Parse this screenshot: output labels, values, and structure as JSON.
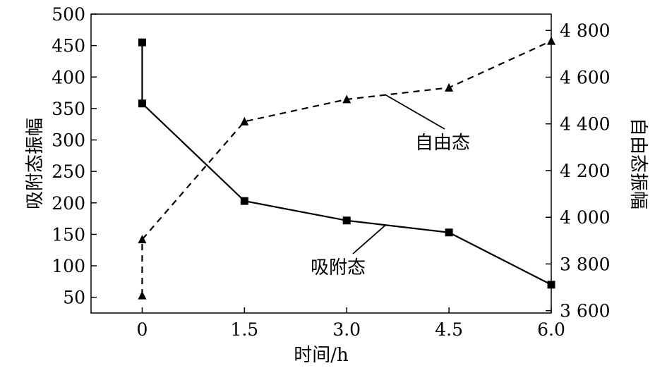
{
  "chart_data": {
    "type": "line",
    "xlabel": "时间/h",
    "ylabel_left": "吸附态振幅",
    "ylabel_right": "自由态振幅",
    "x_ticks": [
      "0",
      "1.5",
      "3.0",
      "4.5",
      "6.0"
    ],
    "xlim": [
      -0.75,
      6.0
    ],
    "ylim_left": [
      25,
      500
    ],
    "ylim_right": [
      3590,
      4870
    ],
    "y_ticks_left": [
      50,
      100,
      150,
      200,
      250,
      300,
      350,
      400,
      450,
      500
    ],
    "y_ticks_right": [
      3600,
      3800,
      4000,
      4200,
      4400,
      4600,
      4800
    ],
    "y_ticks_right_labels": [
      "3 600",
      "3 800",
      "4 000",
      "4 200",
      "4 400",
      "4 600",
      "4 800"
    ],
    "grid": false,
    "series": [
      {
        "name": "吸附态",
        "axis": "left",
        "marker": "square",
        "line_style": "solid",
        "color": "#000000",
        "points": [
          [
            0,
            455
          ],
          [
            0,
            358
          ],
          [
            1.5,
            203
          ],
          [
            3.0,
            172
          ],
          [
            4.5,
            153
          ],
          [
            6.0,
            70
          ]
        ]
      },
      {
        "name": "自由态",
        "axis": "right",
        "marker": "triangle",
        "line_style": "dashed",
        "color": "#000000",
        "points": [
          [
            0,
            3665
          ],
          [
            0,
            3905
          ],
          [
            1.5,
            4410
          ],
          [
            3.0,
            4505
          ],
          [
            4.5,
            4555
          ],
          [
            6.0,
            4755
          ]
        ]
      }
    ],
    "annotations": [
      {
        "text": "自由态",
        "series": "自由态"
      },
      {
        "text": "吸附态",
        "series": "吸附态"
      }
    ]
  }
}
